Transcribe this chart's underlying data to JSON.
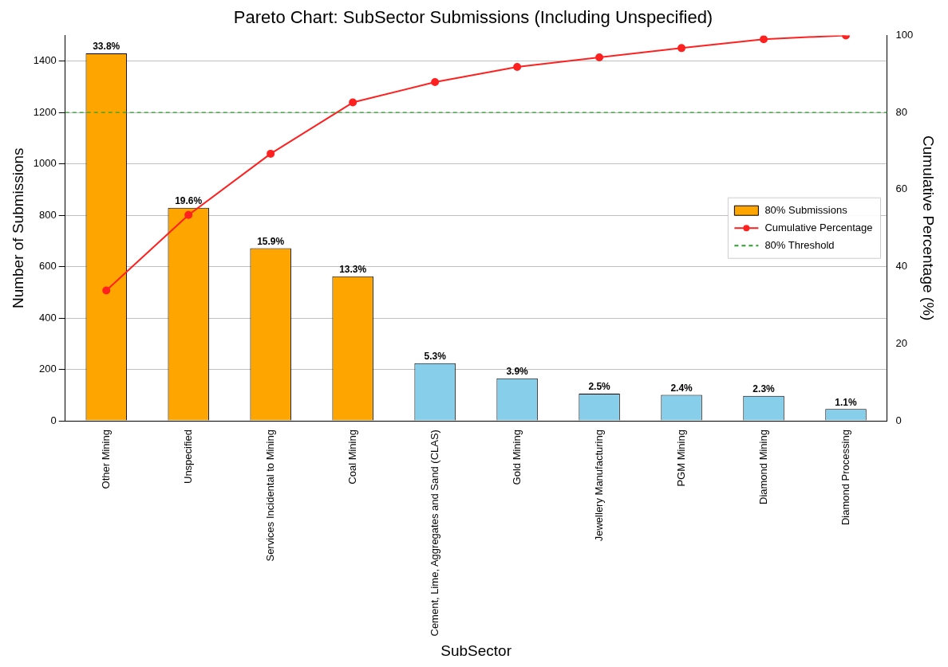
{
  "chart_data": {
    "type": "bar",
    "title": "Pareto Chart: SubSector Submissions (Including Unspecified)",
    "xlabel": "SubSector",
    "ylabel": "Number of Submissions",
    "y2label": "Cumulative Percentage (%)",
    "categories": [
      "Other Mining",
      "Unspecified",
      "Services Incidental to Mining",
      "Coal Mining",
      "Cement, Lime, Aggregates and Sand (CLAS)",
      "Gold Mining",
      "Jewellery Manufacturing",
      "PGM Mining",
      "Diamond Mining",
      "Diamond Processing"
    ],
    "series": [
      {
        "name": "80% Submissions",
        "colors": [
          "#ffa500",
          "#ffa500",
          "#ffa500",
          "#ffa500",
          "#87ceeb",
          "#87ceeb",
          "#87ceeb",
          "#87ceeb",
          "#87ceeb",
          "#87ceeb"
        ],
        "values": [
          1430,
          829,
          672,
          562,
          224,
          165,
          106,
          101,
          97,
          46
        ]
      },
      {
        "name": "Cumulative Percentage",
        "type": "line",
        "axis": "y2",
        "color": "#ff2020",
        "values": [
          33.8,
          53.4,
          69.3,
          82.6,
          87.9,
          91.8,
          94.3,
          96.7,
          99.0,
          100
        ]
      }
    ],
    "ylim": [
      0,
      1500
    ],
    "yticks": [
      0,
      200,
      400,
      600,
      800,
      1000,
      1200,
      1400
    ],
    "y2lim": [
      0,
      100
    ],
    "y2ticks": [
      0,
      20,
      40,
      60,
      80,
      100
    ],
    "ref_lines": [
      {
        "axis": "y2",
        "value": 80,
        "label": "80% Threshold",
        "color": "#2ca02c",
        "line_style": "dashed"
      }
    ],
    "annotations": [
      {
        "text": "33.8%",
        "x": "Other Mining",
        "y": 1430
      },
      {
        "text": "19.6%",
        "x": "Unspecified",
        "y": 829
      },
      {
        "text": "15.9%",
        "x": "Services Incidental to Mining",
        "y": 672
      },
      {
        "text": "13.3%",
        "x": "Coal Mining",
        "y": 562
      },
      {
        "text": "5.3%",
        "x": "Cement, Lime, Aggregates and Sand (CLAS)",
        "y": 224
      },
      {
        "text": "3.9%",
        "x": "Gold Mining",
        "y": 165
      },
      {
        "text": "2.5%",
        "x": "Jewellery Manufacturing",
        "y": 106
      },
      {
        "text": "2.4%",
        "x": "PGM Mining",
        "y": 101
      },
      {
        "text": "2.3%",
        "x": "Diamond Mining",
        "y": 97
      },
      {
        "text": "1.1%",
        "x": "Diamond Processing",
        "y": 46
      }
    ],
    "grid": "y",
    "legend": "right",
    "marker": "circle"
  }
}
